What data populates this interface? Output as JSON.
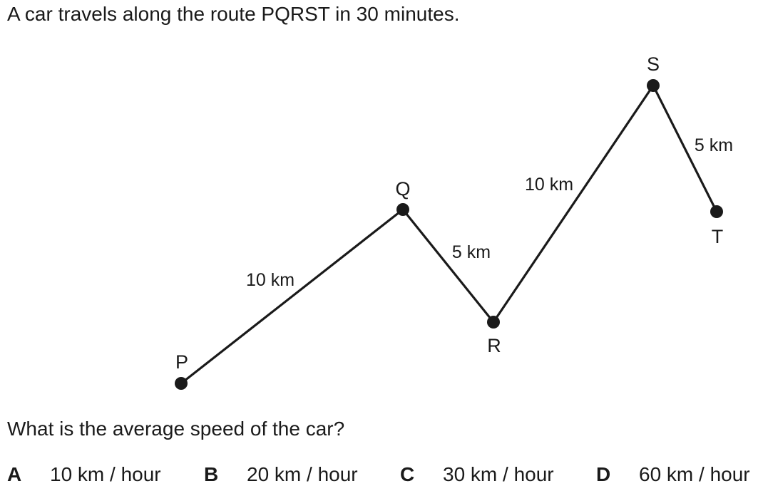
{
  "question": {
    "intro": "A car travels along the route PQRST in 30 minutes.",
    "prompt": "What is the average speed of the car?"
  },
  "diagram": {
    "points": [
      {
        "id": "P",
        "label": "P"
      },
      {
        "id": "Q",
        "label": "Q"
      },
      {
        "id": "R",
        "label": "R"
      },
      {
        "id": "S",
        "label": "S"
      },
      {
        "id": "T",
        "label": "T"
      }
    ],
    "segments": [
      {
        "from": "P",
        "to": "Q",
        "distance": "10 km"
      },
      {
        "from": "Q",
        "to": "R",
        "distance": "5 km"
      },
      {
        "from": "R",
        "to": "S",
        "distance": "10 km"
      },
      {
        "from": "S",
        "to": "T",
        "distance": "5 km"
      }
    ]
  },
  "options": [
    {
      "letter": "A",
      "text": "10 km / hour"
    },
    {
      "letter": "B",
      "text": "20 km / hour"
    },
    {
      "letter": "C",
      "text": "30 km / hour"
    },
    {
      "letter": "D",
      "text": "60 km / hour"
    }
  ]
}
